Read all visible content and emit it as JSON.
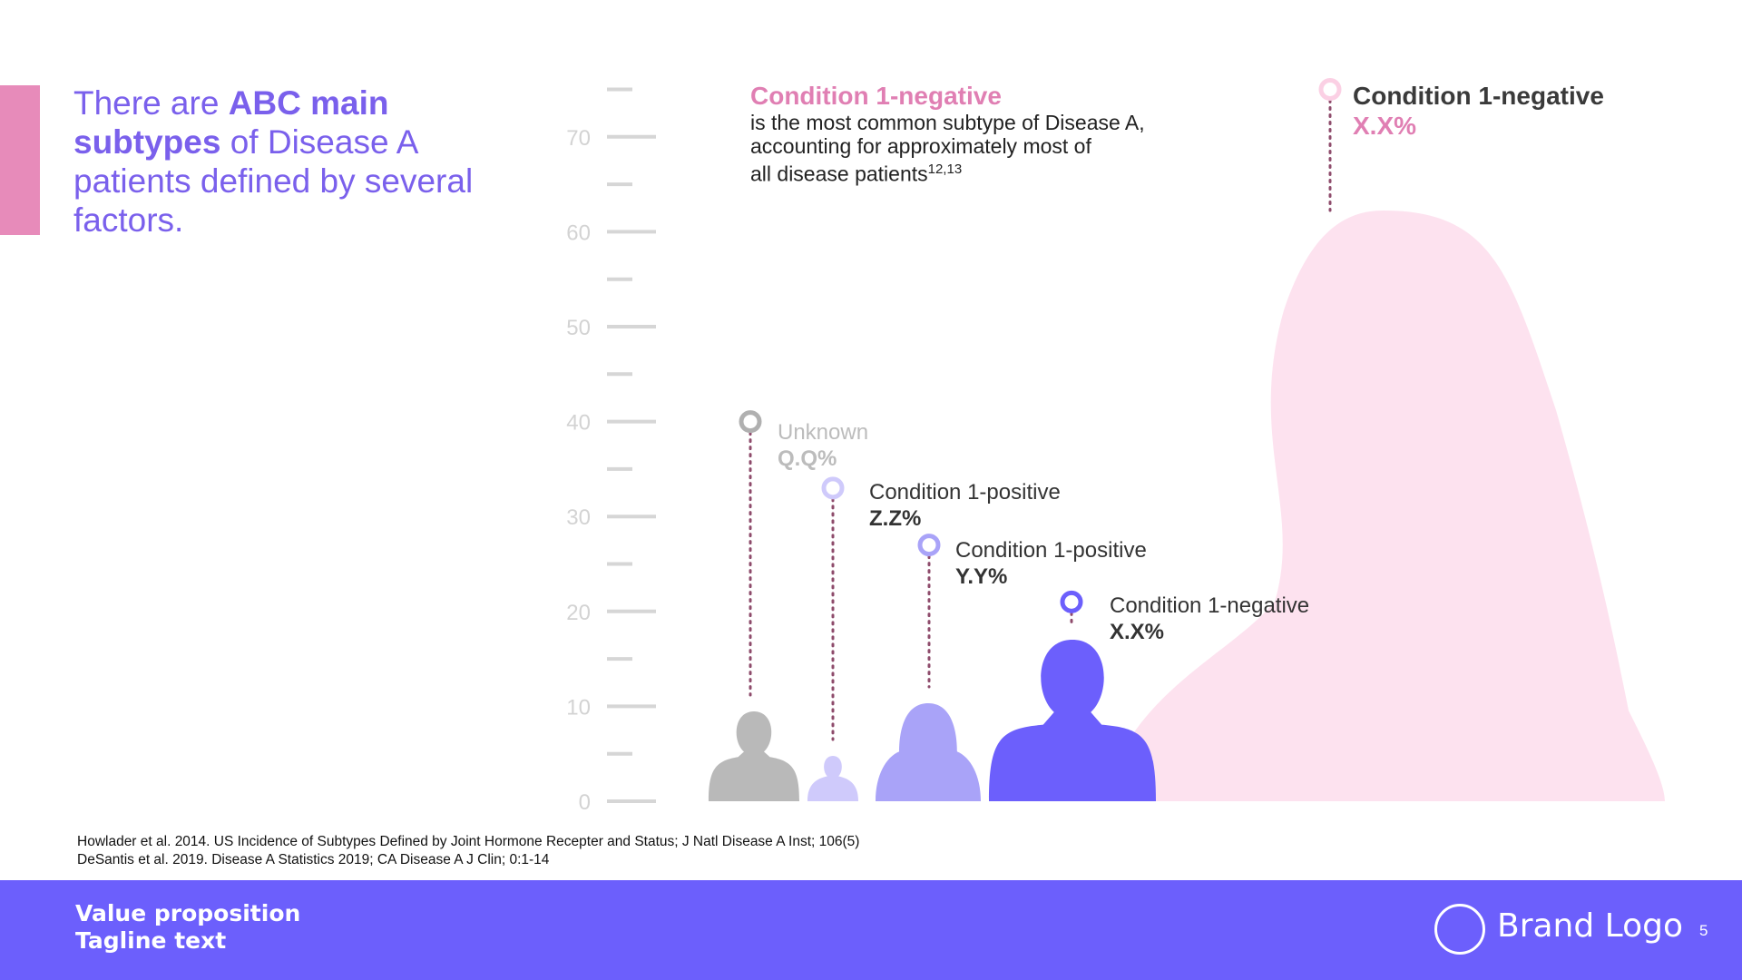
{
  "headline": {
    "part1": "There are ",
    "bold": "ABC main subtypes",
    "part2": " of Disease A patients defined by several factors."
  },
  "callout": {
    "title": "Condition 1-negative",
    "line1": "is the most common subtype of Disease A,",
    "line2": "accounting for approximately most of",
    "line3": "all disease patients",
    "superscript": "12,13"
  },
  "chart_data": {
    "type": "bar",
    "categories": [
      "Unknown",
      "Condition 1-positive",
      "Condition 1-positive",
      "Condition 1-negative",
      "Condition 1-negative"
    ],
    "values": [
      40,
      33,
      27,
      21,
      75
    ],
    "value_labels": [
      "Q.Q%",
      "Z.Z%",
      "Y.Y%",
      "X.X%",
      "X.X%"
    ],
    "ylim": [
      0,
      75
    ],
    "yticks": [
      0,
      10,
      20,
      30,
      40,
      50,
      60,
      70
    ],
    "grid": false,
    "colors": [
      "#b9b9b9",
      "#cfcafb",
      "#a9a3f8",
      "#6c5ffc",
      "#fde2ef"
    ],
    "marker_colors": [
      "#b0b0b0",
      "#cfcafb",
      "#a9a3f8",
      "#6c5ffc",
      "#fbd0e4"
    ],
    "connector_color": "#8e4b6b"
  },
  "labels": [
    {
      "name": "Unknown",
      "value": "Q.Q%",
      "name_color": "#bcbcbc",
      "value_color": "#bcbcbc"
    },
    {
      "name": "Condition 1-positive",
      "value": "Z.Z%",
      "name_color": "#333333",
      "value_color": "#333333"
    },
    {
      "name": "Condition 1-positive",
      "value": "Y.Y%",
      "name_color": "#333333",
      "value_color": "#333333"
    },
    {
      "name": "Condition 1-negative",
      "value": "X.X%",
      "name_color": "#333333",
      "value_color": "#333333"
    }
  ],
  "big_label": {
    "name": "Condition 1-negative",
    "value": "X.X%"
  },
  "references": [
    "Howlader et al. 2014. US Incidence of Subtypes Defined by Joint Hormone Recepter and Status; J Natl Disease A Inst; 106(5)",
    "DeSantis et al. 2019. Disease A Statistics 2019; CA Disease A J Clin; 0:1-14"
  ],
  "footer": {
    "value_proposition": "Value proposition",
    "tagline": "Tagline text",
    "brand_logo": "Brand Logo",
    "page_number": "5"
  }
}
